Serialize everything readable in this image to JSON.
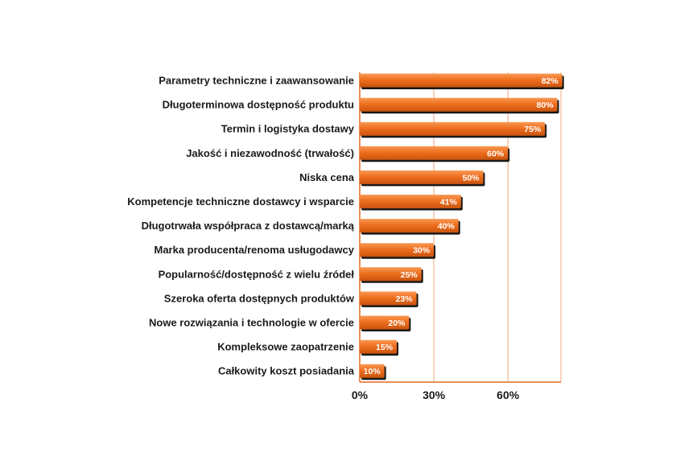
{
  "chart_data": {
    "type": "bar",
    "orientation": "horizontal",
    "categories": [
      "Parametry techniczne i zaawansowanie",
      "Długoterminowa dostępność produktu",
      "Termin i logistyka dostawy",
      "Jakość i niezawodność (trwałość)",
      "Niska cena",
      "Kompetencje techniczne dostawcy i wsparcie",
      "Długotrwała współpraca z dostawcą/marką",
      "Marka producenta/renoma usługodawcy",
      "Popularność/dostępność z wielu źródeł",
      "Szeroka oferta dostępnych produktów",
      "Nowe rozwiązania i technologie w ofercie",
      "Kompleksowe zaopatrzenie",
      "Całkowity koszt posiadania"
    ],
    "values": [
      82,
      80,
      75,
      60,
      50,
      41,
      40,
      30,
      25,
      23,
      20,
      15,
      10
    ],
    "value_labels": [
      "82%",
      "80%",
      "75%",
      "60%",
      "50%",
      "41%",
      "40%",
      "30%",
      "25%",
      "23%",
      "20%",
      "15%",
      "10%"
    ],
    "xlim": [
      0,
      82
    ],
    "x_ticks": [
      0,
      30,
      60
    ],
    "x_tick_labels": [
      "0%",
      "30%",
      "60%"
    ],
    "grid": true,
    "colors": {
      "bar": "#ef6f1f",
      "bar_light": "#f79a55",
      "bar_dark": "#c9540d",
      "bar_shadow": "#1a1a1a",
      "grid": "#f0a878",
      "axis": "#e06a1e"
    }
  }
}
